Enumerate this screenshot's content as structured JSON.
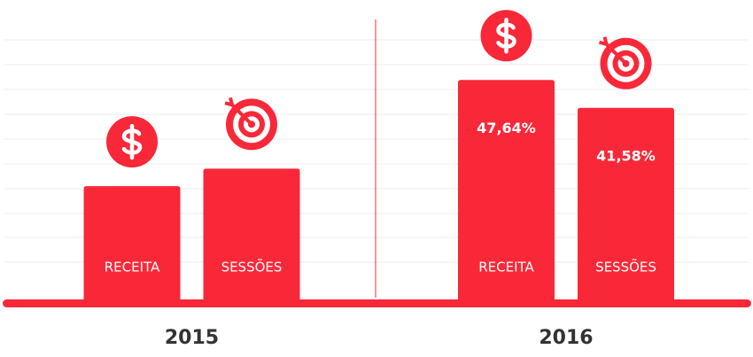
{
  "chart_data": {
    "type": "bar",
    "categories": [
      "2015",
      "2016"
    ],
    "series": [
      {
        "name": "RECEITA",
        "color": "#f92838",
        "values": [
          24.6,
          47.64
        ],
        "value_labels": [
          null,
          "47,64%"
        ]
      },
      {
        "name": "SESSÕES",
        "color": "#f92838",
        "values": [
          28.4,
          41.58
        ],
        "value_labels": [
          null,
          "41,58%"
        ]
      }
    ],
    "ylim": [
      0,
      60
    ]
  }
}
